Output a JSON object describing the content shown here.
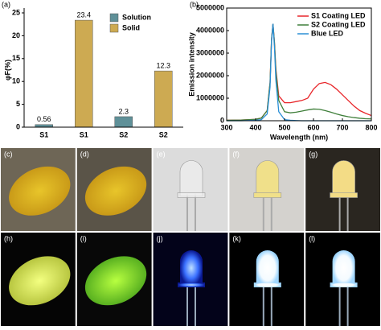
{
  "chart_data": [
    {
      "type": "bar",
      "panel": "(a)",
      "ylabel": "φF(%)",
      "categories": [
        "S1",
        "S1",
        "S2",
        "S2"
      ],
      "series": [
        {
          "name": "Solution",
          "color": "#5f9098",
          "values": [
            0.56,
            null,
            2.3,
            null
          ]
        },
        {
          "name": "Solid",
          "color": "#cdaa52",
          "values": [
            null,
            23.4,
            null,
            12.3
          ]
        }
      ],
      "ylim": [
        0,
        25
      ],
      "yticks": [
        0,
        5,
        10,
        15,
        20,
        25
      ],
      "legend": "upper-right"
    },
    {
      "type": "line",
      "panel": "(b)",
      "xlabel": "Wavelength (nm)",
      "ylabel": "Emission intensity",
      "x": [
        300,
        350,
        400,
        420,
        440,
        450,
        455,
        460,
        465,
        470,
        480,
        500,
        520,
        540,
        560,
        580,
        600,
        620,
        640,
        660,
        680,
        700,
        720,
        740,
        760,
        780,
        800
      ],
      "series": [
        {
          "name": "S1 Coating LED",
          "color": "#e8262a",
          "values": [
            20000,
            30000,
            60000,
            120000,
            450000,
            1700000,
            3600000,
            4300000,
            3500000,
            2300000,
            1100000,
            800000,
            800000,
            850000,
            900000,
            1000000,
            1400000,
            1650000,
            1700000,
            1600000,
            1400000,
            1150000,
            900000,
            650000,
            450000,
            330000,
            230000
          ]
        },
        {
          "name": "S2 Coating LED",
          "color": "#3f7f3a",
          "values": [
            20000,
            30000,
            60000,
            120000,
            450000,
            1700000,
            3600000,
            4300000,
            3500000,
            2200000,
            900000,
            400000,
            350000,
            380000,
            430000,
            480000,
            520000,
            510000,
            450000,
            380000,
            300000,
            230000,
            180000,
            140000,
            110000,
            90000,
            80000
          ]
        },
        {
          "name": "Blue LED",
          "color": "#2a8fd6",
          "values": [
            0,
            0,
            20000,
            50000,
            300000,
            1500000,
            3500000,
            4300000,
            3300000,
            1800000,
            400000,
            50000,
            20000,
            10000,
            0,
            0,
            0,
            0,
            0,
            0,
            0,
            0,
            0,
            0,
            0,
            0,
            0
          ]
        }
      ],
      "xlim": [
        300,
        800
      ],
      "xticks": [
        300,
        400,
        500,
        600,
        700,
        800
      ],
      "ylim": [
        0,
        5000000
      ],
      "yticks": [
        0,
        1000000,
        2000000,
        3000000,
        4000000,
        5000000
      ],
      "legend": "upper-right"
    }
  ],
  "panels": [
    "(c)",
    "(d)",
    "(e)",
    "(f)",
    "(g)",
    "(h)",
    "(i)",
    "(j)",
    "(k)",
    "(l)"
  ]
}
